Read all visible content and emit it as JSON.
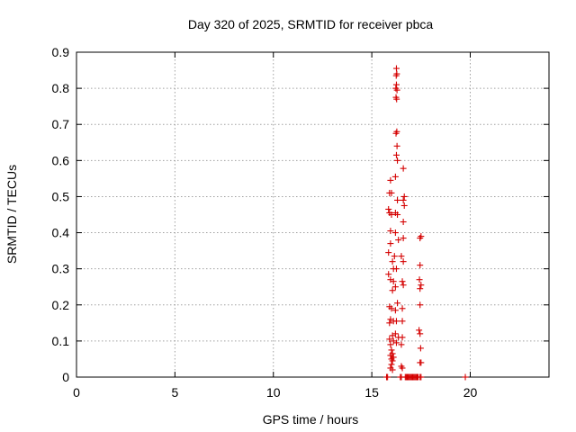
{
  "chart_data": {
    "type": "scatter",
    "title": "Day 320 of 2025, SRMTID for receiver pbca",
    "xlabel": "GPS time / hours",
    "ylabel": "SRMTID / TECUs",
    "xlim": [
      0,
      24
    ],
    "ylim": [
      0,
      0.9
    ],
    "xticks": [
      0,
      5,
      10,
      15,
      20
    ],
    "xtick_labels": [
      "0",
      "5",
      "10",
      "15",
      "20"
    ],
    "yticks": [
      0,
      0.1,
      0.2,
      0.3,
      0.4,
      0.5,
      0.6,
      0.7,
      0.8,
      0.9
    ],
    "ytick_labels": [
      "0",
      "0.1",
      "0.2",
      "0.3",
      "0.4",
      "0.5",
      "0.6",
      "0.7",
      "0.8",
      "0.9"
    ],
    "grid": true,
    "marker": "+",
    "color": "#d40000",
    "series": [
      {
        "name": "pbca",
        "points": [
          [
            16.25,
            0.855
          ],
          [
            16.27,
            0.84
          ],
          [
            16.24,
            0.835
          ],
          [
            16.25,
            0.81
          ],
          [
            16.22,
            0.8
          ],
          [
            16.28,
            0.795
          ],
          [
            16.23,
            0.775
          ],
          [
            16.26,
            0.77
          ],
          [
            16.27,
            0.68
          ],
          [
            16.23,
            0.675
          ],
          [
            16.28,
            0.64
          ],
          [
            16.25,
            0.615
          ],
          [
            16.3,
            0.6
          ],
          [
            16.6,
            0.578
          ],
          [
            16.2,
            0.555
          ],
          [
            15.95,
            0.545
          ],
          [
            15.9,
            0.51
          ],
          [
            16.0,
            0.51
          ],
          [
            16.65,
            0.5
          ],
          [
            16.6,
            0.49
          ],
          [
            16.3,
            0.49
          ],
          [
            15.85,
            0.465
          ],
          [
            15.9,
            0.455
          ],
          [
            16.0,
            0.45
          ],
          [
            16.2,
            0.455
          ],
          [
            16.3,
            0.45
          ],
          [
            16.65,
            0.475
          ],
          [
            16.6,
            0.43
          ],
          [
            15.95,
            0.405
          ],
          [
            16.2,
            0.4
          ],
          [
            16.35,
            0.38
          ],
          [
            16.6,
            0.385
          ],
          [
            17.5,
            0.39
          ],
          [
            17.45,
            0.385
          ],
          [
            15.95,
            0.37
          ],
          [
            16.15,
            0.335
          ],
          [
            15.85,
            0.345
          ],
          [
            16.05,
            0.32
          ],
          [
            16.5,
            0.335
          ],
          [
            16.6,
            0.32
          ],
          [
            17.45,
            0.31
          ],
          [
            16.1,
            0.3
          ],
          [
            16.25,
            0.3
          ],
          [
            15.85,
            0.285
          ],
          [
            15.95,
            0.27
          ],
          [
            16.1,
            0.265
          ],
          [
            16.55,
            0.265
          ],
          [
            16.6,
            0.255
          ],
          [
            17.42,
            0.27
          ],
          [
            17.5,
            0.255
          ],
          [
            17.45,
            0.245
          ],
          [
            16.05,
            0.24
          ],
          [
            16.2,
            0.25
          ],
          [
            16.3,
            0.205
          ],
          [
            17.45,
            0.2
          ],
          [
            15.9,
            0.195
          ],
          [
            16.0,
            0.19
          ],
          [
            16.55,
            0.19
          ],
          [
            16.2,
            0.185
          ],
          [
            15.95,
            0.16
          ],
          [
            15.9,
            0.15
          ],
          [
            16.1,
            0.155
          ],
          [
            16.25,
            0.155
          ],
          [
            16.55,
            0.155
          ],
          [
            17.4,
            0.13
          ],
          [
            17.45,
            0.12
          ],
          [
            16.05,
            0.115
          ],
          [
            16.2,
            0.12
          ],
          [
            16.35,
            0.11
          ],
          [
            16.55,
            0.11
          ],
          [
            15.9,
            0.105
          ],
          [
            15.95,
            0.09
          ],
          [
            16.1,
            0.1
          ],
          [
            16.25,
            0.095
          ],
          [
            16.5,
            0.09
          ],
          [
            17.48,
            0.08
          ],
          [
            16.0,
            0.075
          ],
          [
            16.05,
            0.065
          ],
          [
            15.95,
            0.06
          ],
          [
            16.1,
            0.055
          ],
          [
            16.0,
            0.05
          ],
          [
            16.05,
            0.045
          ],
          [
            17.5,
            0.04
          ],
          [
            17.45,
            0.04
          ],
          [
            16.0,
            0.035
          ],
          [
            15.95,
            0.025
          ],
          [
            16.05,
            0.02
          ],
          [
            16.5,
            0.03
          ],
          [
            16.55,
            0.025
          ],
          [
            15.75,
            0.0
          ],
          [
            15.8,
            0.0
          ],
          [
            16.45,
            0.0
          ],
          [
            16.5,
            0.0
          ],
          [
            16.7,
            0.0
          ],
          [
            16.75,
            0.0
          ],
          [
            16.8,
            0.0
          ],
          [
            16.85,
            0.0
          ],
          [
            16.9,
            0.0
          ],
          [
            16.95,
            0.0
          ],
          [
            17.0,
            0.0
          ],
          [
            17.05,
            0.0
          ],
          [
            17.1,
            0.0
          ],
          [
            17.15,
            0.0
          ],
          [
            17.2,
            0.0
          ],
          [
            17.25,
            0.0
          ],
          [
            17.3,
            0.0
          ],
          [
            17.35,
            0.0
          ],
          [
            17.45,
            0.0
          ],
          [
            17.5,
            0.0
          ],
          [
            19.75,
            0.0
          ]
        ]
      }
    ]
  }
}
